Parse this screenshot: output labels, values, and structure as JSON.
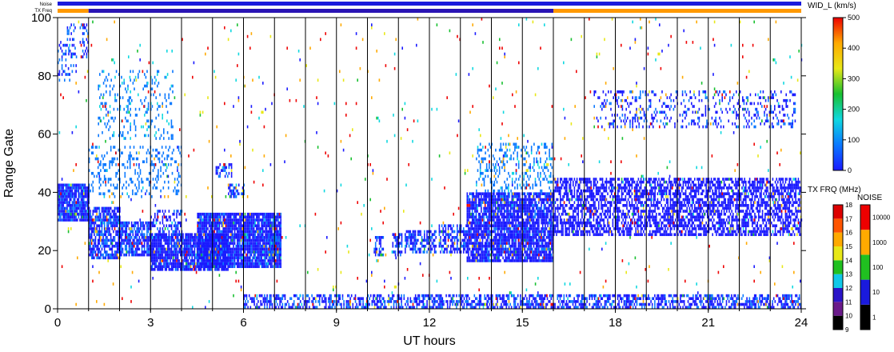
{
  "chart_data": {
    "type": "heatmap",
    "title": "",
    "xlabel": "UT hours",
    "ylabel": "Range Gate",
    "xlim": [
      0,
      24
    ],
    "ylim": [
      0,
      100
    ],
    "x_ticks": [
      "0",
      "3",
      "6",
      "9",
      "12",
      "15",
      "18",
      "21",
      "24"
    ],
    "y_ticks": [
      "0",
      "20",
      "40",
      "60",
      "80",
      "100"
    ],
    "scan_boundaries_ut": [
      1,
      2,
      3,
      4,
      5,
      6,
      7,
      8,
      9,
      10,
      11,
      12,
      13,
      14,
      15,
      16,
      17,
      18,
      19,
      20,
      21,
      22,
      23
    ],
    "top_bars": {
      "noise_label": "Noise",
      "txfreq_label": "TX Freq",
      "noise_color": "#1a1adc",
      "txfreq_segments": [
        {
          "from": 0,
          "to": 1,
          "color": "#ff9900"
        },
        {
          "from": 1,
          "to": 16,
          "color": "#2a14b4"
        },
        {
          "from": 16,
          "to": 24,
          "color": "#ff9900"
        }
      ]
    },
    "width_colorbar": {
      "label": "WID_L (km/s)",
      "ticks": [
        "0",
        "100",
        "200",
        "300",
        "400",
        "500"
      ],
      "range": [
        0,
        500
      ],
      "colors": [
        "#1a1aff",
        "#0a78ff",
        "#10d8e0",
        "#18c030",
        "#e8e818",
        "#ffaa00",
        "#ee0000"
      ]
    },
    "txfreq_colorbar": {
      "label": "TX FRQ (MHz)",
      "ticks": [
        "9",
        "10",
        "11",
        "12",
        "13",
        "14",
        "15",
        "16",
        "17",
        "18"
      ],
      "colors": [
        "#000000",
        "#6a1a8a",
        "#2a14c8",
        "#10c8e8",
        "#20c020",
        "#e8e818",
        "#ffaa00",
        "#ff5500",
        "#dd0000"
      ]
    },
    "noise_colorbar": {
      "label": "NOISE",
      "ticks": [
        "1",
        "10",
        "100",
        "1000",
        "10000"
      ],
      "colors": [
        "#000000",
        "#1a1add",
        "#20c020",
        "#ffaa00",
        "#ee0000"
      ]
    },
    "echo_regions": [
      {
        "x0": 0.0,
        "x1": 1.0,
        "y0": 30,
        "y1": 43,
        "density": 0.92,
        "value": 60
      },
      {
        "x0": 1.0,
        "x1": 2.0,
        "y0": 17,
        "y1": 35,
        "density": 0.75,
        "value": 60
      },
      {
        "x0": 2.0,
        "x1": 3.0,
        "y0": 18,
        "y1": 30,
        "density": 0.8,
        "value": 60
      },
      {
        "x0": 1.0,
        "x1": 4.0,
        "y0": 38,
        "y1": 56,
        "density": 0.2,
        "value": 100
      },
      {
        "x0": 1.3,
        "x1": 3.7,
        "y0": 58,
        "y1": 82,
        "density": 0.15,
        "value": 120
      },
      {
        "x0": 3.0,
        "x1": 4.0,
        "y0": 24,
        "y1": 34,
        "density": 0.35,
        "value": 60
      },
      {
        "x0": 3.0,
        "x1": 5.5,
        "y0": 13,
        "y1": 26,
        "density": 0.88,
        "value": 50
      },
      {
        "x0": 4.5,
        "x1": 7.2,
        "y0": 14,
        "y1": 33,
        "density": 0.9,
        "value": 50
      },
      {
        "x0": 6.8,
        "x1": 7.2,
        "y0": 17,
        "y1": 27,
        "density": 0.6,
        "value": 80
      },
      {
        "x0": 5.1,
        "x1": 5.6,
        "y0": 45,
        "y1": 50,
        "density": 0.5,
        "value": 60
      },
      {
        "x0": 5.5,
        "x1": 6.0,
        "y0": 38,
        "y1": 43,
        "density": 0.5,
        "value": 60
      },
      {
        "x0": 10.2,
        "x1": 10.5,
        "y0": 18,
        "y1": 25,
        "density": 0.6,
        "value": 60
      },
      {
        "x0": 10.8,
        "x1": 11.1,
        "y0": 18,
        "y1": 26,
        "density": 0.6,
        "value": 60
      },
      {
        "x0": 11.2,
        "x1": 12.2,
        "y0": 19,
        "y1": 27,
        "density": 0.6,
        "value": 60
      },
      {
        "x0": 12.3,
        "x1": 13.2,
        "y0": 19,
        "y1": 29,
        "density": 0.55,
        "value": 60
      },
      {
        "x0": 13.2,
        "x1": 16.0,
        "y0": 16,
        "y1": 40,
        "density": 0.85,
        "value": 50
      },
      {
        "x0": 13.5,
        "x1": 16.0,
        "y0": 40,
        "y1": 57,
        "density": 0.25,
        "value": 120
      },
      {
        "x0": 16.0,
        "x1": 24.0,
        "y0": 25,
        "y1": 45,
        "density": 0.62,
        "value": 40
      },
      {
        "x0": 17.3,
        "x1": 23.8,
        "y0": 62,
        "y1": 75,
        "density": 0.22,
        "value": 60
      },
      {
        "x0": 0.0,
        "x1": 0.6,
        "y0": 78,
        "y1": 92,
        "density": 0.2,
        "value": 70
      },
      {
        "x0": 0.3,
        "x1": 1.0,
        "y0": 85,
        "y1": 98,
        "density": 0.25,
        "value": 70
      },
      {
        "x0": 6.0,
        "x1": 24.0,
        "y0": 0,
        "y1": 5,
        "density": 0.55,
        "value": 60
      },
      {
        "x0": 0.0,
        "x1": 24.0,
        "y0": 0,
        "y1": 100,
        "density": 0.012,
        "value": 450
      }
    ]
  }
}
